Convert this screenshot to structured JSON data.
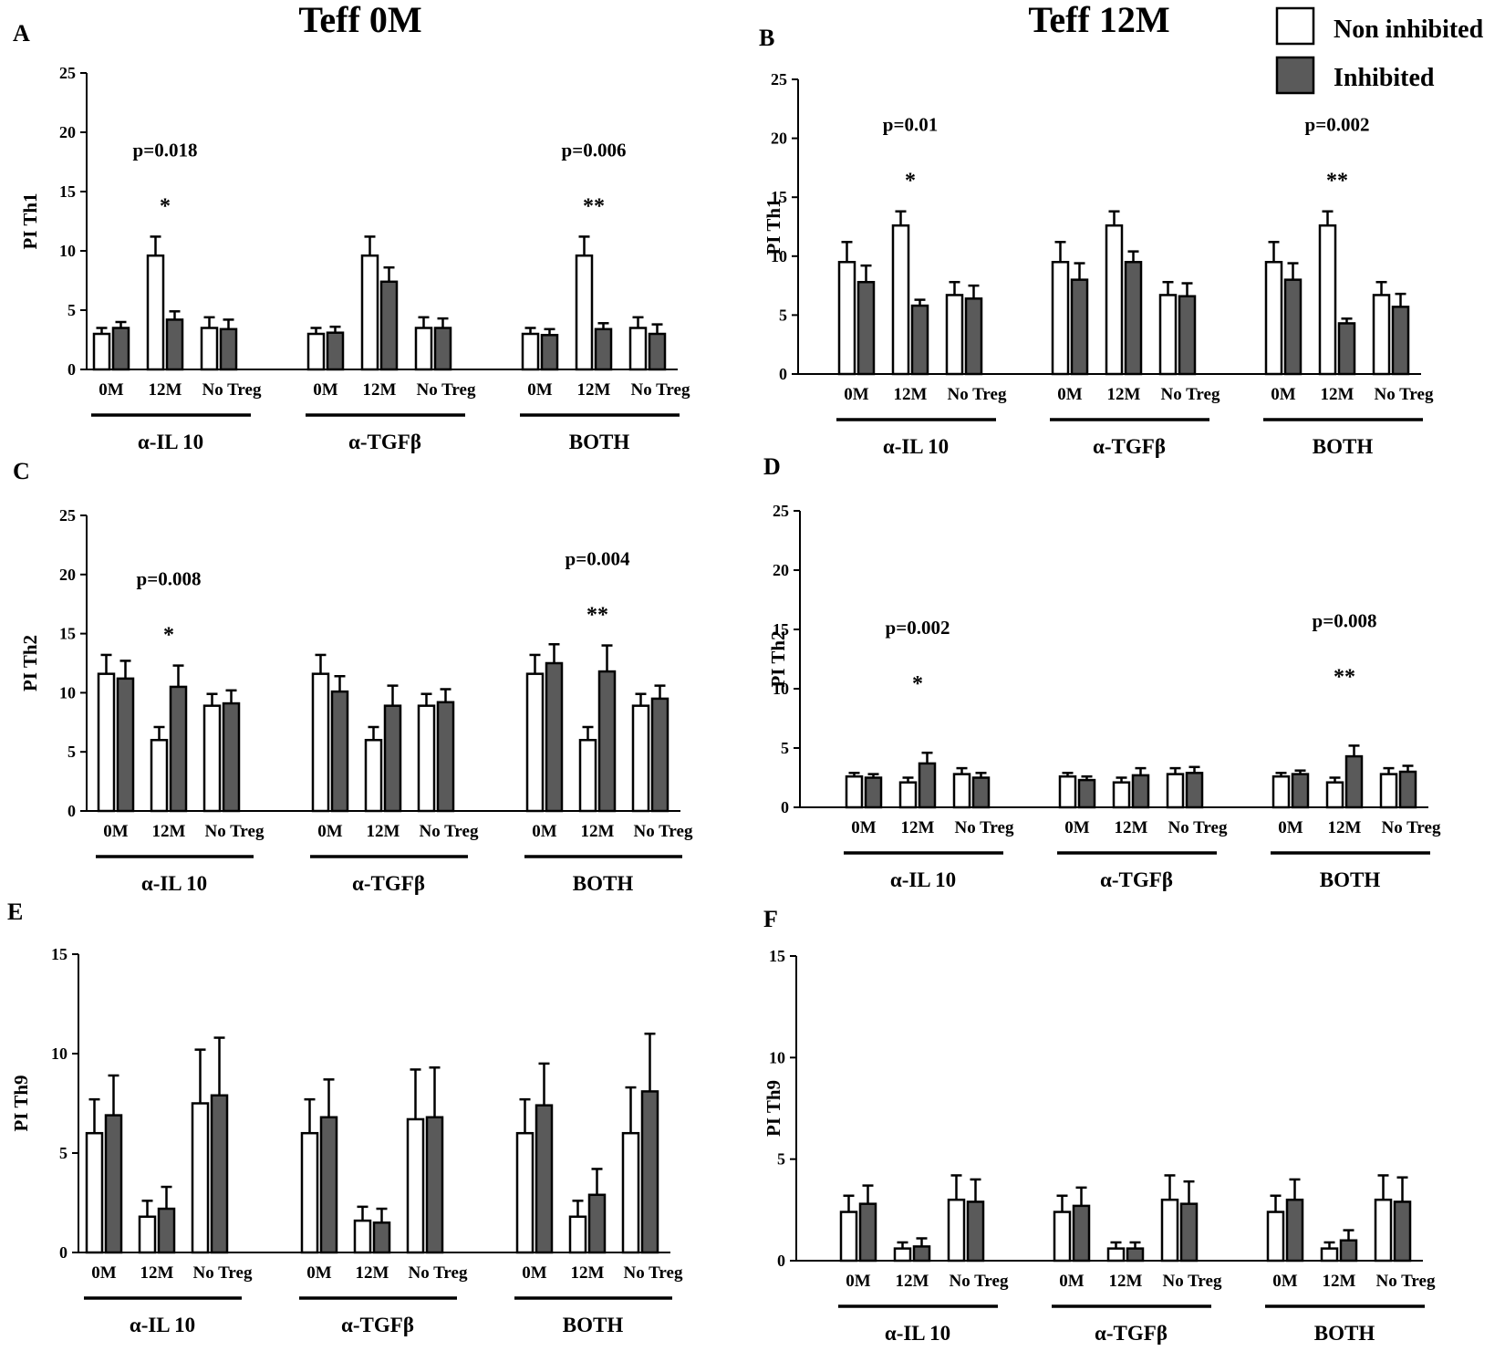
{
  "titles": {
    "left": "Teff 0M",
    "right": "Teff 12M"
  },
  "legend": [
    {
      "label": "Non inhibited",
      "color": "#ffffff"
    },
    {
      "label": "Inhibited",
      "color": "#5a5a5a"
    }
  ],
  "colors": {
    "non_inhibited": "#ffffff",
    "inhibited": "#5a5a5a",
    "axis": "#000000"
  },
  "chart_data": [
    {
      "panel": "A",
      "type": "bar",
      "ylabel": "PI Th1",
      "ylim": [
        0,
        25
      ],
      "yticks": [
        0,
        5,
        10,
        15,
        20,
        25
      ],
      "groups": [
        "α-IL 10",
        "α-TGFβ",
        "BOTH"
      ],
      "categories": [
        "0M",
        "12M",
        "No Treg"
      ],
      "series": [
        {
          "name": "Non inhibited",
          "values": [
            [
              3.0,
              9.6,
              3.5
            ],
            [
              3.0,
              9.6,
              3.5
            ],
            [
              3.0,
              9.6,
              3.5
            ]
          ],
          "errors": [
            [
              0.5,
              1.6,
              0.9
            ],
            [
              0.5,
              1.6,
              0.9
            ],
            [
              0.5,
              1.6,
              0.9
            ]
          ]
        },
        {
          "name": "Inhibited",
          "values": [
            [
              3.5,
              4.2,
              3.4
            ],
            [
              3.1,
              7.4,
              3.5
            ],
            [
              2.9,
              3.4,
              3.0
            ]
          ],
          "errors": [
            [
              0.5,
              0.7,
              0.8
            ],
            [
              0.5,
              1.2,
              0.8
            ],
            [
              0.5,
              0.5,
              0.8
            ]
          ]
        }
      ],
      "annotations": [
        {
          "group": 0,
          "p": "p=0.018",
          "stars": "*"
        },
        {
          "group": 2,
          "p": "p=0.006",
          "stars": "**"
        }
      ]
    },
    {
      "panel": "B",
      "type": "bar",
      "ylabel": "PI Th1",
      "ylim": [
        0,
        25
      ],
      "yticks": [
        0,
        5,
        10,
        15,
        20,
        25
      ],
      "groups": [
        "α-IL 10",
        "α-TGFβ",
        "BOTH"
      ],
      "categories": [
        "0M",
        "12M",
        "No Treg"
      ],
      "series": [
        {
          "name": "Non inhibited",
          "values": [
            [
              9.5,
              12.6,
              6.7
            ],
            [
              9.5,
              12.6,
              6.7
            ],
            [
              9.5,
              12.6,
              6.7
            ]
          ],
          "errors": [
            [
              1.7,
              1.2,
              1.1
            ],
            [
              1.7,
              1.2,
              1.1
            ],
            [
              1.7,
              1.2,
              1.1
            ]
          ]
        },
        {
          "name": "Inhibited",
          "values": [
            [
              7.8,
              5.8,
              6.4
            ],
            [
              8.0,
              9.5,
              6.6
            ],
            [
              8.0,
              4.3,
              5.7
            ]
          ],
          "errors": [
            [
              1.4,
              0.5,
              1.1
            ],
            [
              1.4,
              0.9,
              1.1
            ],
            [
              1.4,
              0.4,
              1.1
            ]
          ]
        }
      ],
      "annotations": [
        {
          "group": 0,
          "p": "p=0.01",
          "stars": "*"
        },
        {
          "group": 2,
          "p": "p=0.002",
          "stars": "**"
        }
      ]
    },
    {
      "panel": "C",
      "type": "bar",
      "ylabel": "PI Th2",
      "ylim": [
        0,
        25
      ],
      "yticks": [
        0,
        5,
        10,
        15,
        20,
        25
      ],
      "groups": [
        "α-IL 10",
        "α-TGFβ",
        "BOTH"
      ],
      "categories": [
        "0M",
        "12M",
        "No Treg"
      ],
      "series": [
        {
          "name": "Non inhibited",
          "values": [
            [
              11.6,
              6.0,
              8.9
            ],
            [
              11.6,
              6.0,
              8.9
            ],
            [
              11.6,
              6.0,
              8.9
            ]
          ],
          "errors": [
            [
              1.6,
              1.1,
              1.0
            ],
            [
              1.6,
              1.1,
              1.0
            ],
            [
              1.6,
              1.1,
              1.0
            ]
          ]
        },
        {
          "name": "Inhibited",
          "values": [
            [
              11.2,
              10.5,
              9.1
            ],
            [
              10.1,
              8.9,
              9.2
            ],
            [
              12.5,
              11.8,
              9.5
            ]
          ],
          "errors": [
            [
              1.5,
              1.8,
              1.1
            ],
            [
              1.3,
              1.7,
              1.1
            ],
            [
              1.6,
              2.2,
              1.1
            ]
          ]
        }
      ],
      "annotations": [
        {
          "group": 0,
          "p": "p=0.008",
          "stars": "*"
        },
        {
          "group": 2,
          "p": "p=0.004",
          "stars": "**"
        }
      ]
    },
    {
      "panel": "D",
      "type": "bar",
      "ylabel": "PI Th2",
      "ylim": [
        0,
        25
      ],
      "yticks": [
        0,
        5,
        10,
        15,
        20,
        25
      ],
      "groups": [
        "α-IL 10",
        "α-TGFβ",
        "BOTH"
      ],
      "categories": [
        "0M",
        "12M",
        "No Treg"
      ],
      "series": [
        {
          "name": "Non inhibited",
          "values": [
            [
              2.6,
              2.1,
              2.8
            ],
            [
              2.6,
              2.1,
              2.8
            ],
            [
              2.6,
              2.1,
              2.8
            ]
          ],
          "errors": [
            [
              0.3,
              0.4,
              0.5
            ],
            [
              0.3,
              0.4,
              0.5
            ],
            [
              0.3,
              0.4,
              0.5
            ]
          ]
        },
        {
          "name": "Inhibited",
          "values": [
            [
              2.5,
              3.7,
              2.5
            ],
            [
              2.3,
              2.7,
              2.9
            ],
            [
              2.8,
              4.3,
              3.0
            ]
          ],
          "errors": [
            [
              0.3,
              0.9,
              0.4
            ],
            [
              0.3,
              0.6,
              0.5
            ],
            [
              0.3,
              0.9,
              0.5
            ]
          ]
        }
      ],
      "annotations": [
        {
          "group": 0,
          "p": "p=0.002",
          "stars": "*"
        },
        {
          "group": 2,
          "p": "p=0.008",
          "stars": "**"
        }
      ]
    },
    {
      "panel": "E",
      "type": "bar",
      "ylabel": "PI Th9",
      "ylim": [
        0,
        15
      ],
      "yticks": [
        0,
        5,
        10,
        15
      ],
      "groups": [
        "α-IL 10",
        "α-TGFβ",
        "BOTH"
      ],
      "categories": [
        "0M",
        "12M",
        "No Treg"
      ],
      "series": [
        {
          "name": "Non inhibited",
          "values": [
            [
              6.0,
              1.8,
              7.5
            ],
            [
              6.0,
              1.6,
              6.7
            ],
            [
              6.0,
              1.8,
              6.0
            ]
          ],
          "errors": [
            [
              1.7,
              0.8,
              2.7
            ],
            [
              1.7,
              0.7,
              2.5
            ],
            [
              1.7,
              0.8,
              2.3
            ]
          ]
        },
        {
          "name": "Inhibited",
          "values": [
            [
              6.9,
              2.2,
              7.9
            ],
            [
              6.8,
              1.5,
              6.8
            ],
            [
              7.4,
              2.9,
              8.1
            ]
          ],
          "errors": [
            [
              2.0,
              1.1,
              2.9
            ],
            [
              1.9,
              0.7,
              2.5
            ],
            [
              2.1,
              1.3,
              2.9
            ]
          ]
        }
      ],
      "annotations": []
    },
    {
      "panel": "F",
      "type": "bar",
      "ylabel": "PI Th9",
      "ylim": [
        0,
        15
      ],
      "yticks": [
        0,
        5,
        10,
        15
      ],
      "groups": [
        "α-IL 10",
        "α-TGFβ",
        "BOTH"
      ],
      "categories": [
        "0M",
        "12M",
        "No Treg"
      ],
      "series": [
        {
          "name": "Non inhibited",
          "values": [
            [
              2.4,
              0.6,
              3.0
            ],
            [
              2.4,
              0.6,
              3.0
            ],
            [
              2.4,
              0.6,
              3.0
            ]
          ],
          "errors": [
            [
              0.8,
              0.3,
              1.2
            ],
            [
              0.8,
              0.3,
              1.2
            ],
            [
              0.8,
              0.3,
              1.2
            ]
          ]
        },
        {
          "name": "Inhibited",
          "values": [
            [
              2.8,
              0.7,
              2.9
            ],
            [
              2.7,
              0.6,
              2.8
            ],
            [
              3.0,
              1.0,
              2.9
            ]
          ],
          "errors": [
            [
              0.9,
              0.4,
              1.1
            ],
            [
              0.9,
              0.3,
              1.1
            ],
            [
              1.0,
              0.5,
              1.2
            ]
          ]
        }
      ],
      "annotations": []
    }
  ]
}
